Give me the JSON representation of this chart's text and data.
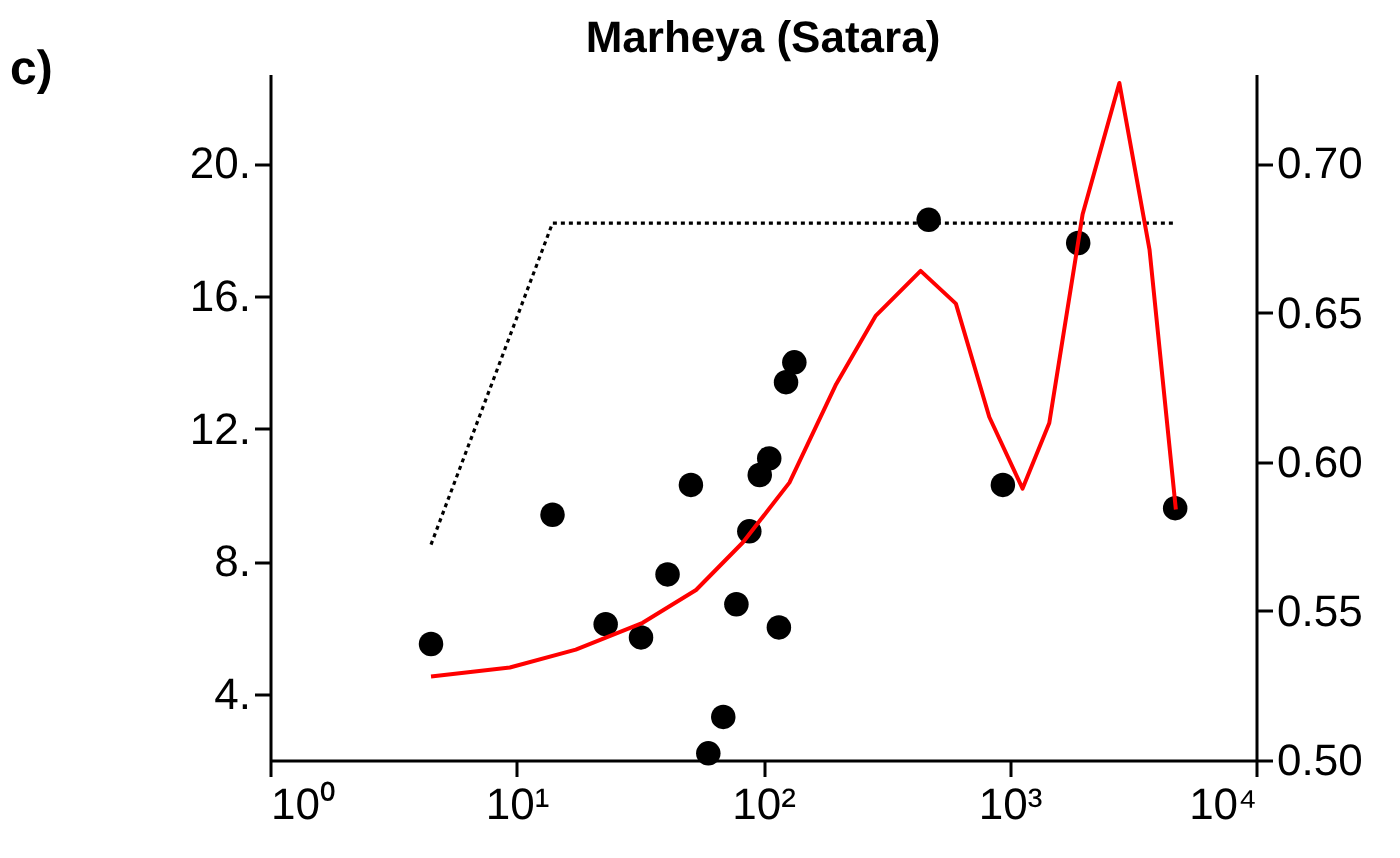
{
  "chart_data": {
    "type": "scatter",
    "title": "Marheya (Satara)",
    "annotations": [
      "c)"
    ],
    "log": "x",
    "grid": false,
    "xlim": [
      1,
      10000
    ],
    "xticks": [
      {
        "value": 1,
        "label": "10⁰"
      },
      {
        "value": 10,
        "label": "10¹"
      },
      {
        "value": 100,
        "label": "10²"
      },
      {
        "value": 1000,
        "label": "10³"
      },
      {
        "value": 10000,
        "label": "10⁴"
      }
    ],
    "ylim": [
      2,
      22.7
    ],
    "yticks": [
      {
        "value": 4,
        "label": "4."
      },
      {
        "value": 8,
        "label": "8."
      },
      {
        "value": 12,
        "label": "12."
      },
      {
        "value": 16,
        "label": "16."
      },
      {
        "value": 20,
        "label": "20."
      }
    ],
    "y2lim": [
      0.5,
      0.73
    ],
    "y2ticks": [
      {
        "value": 0.5,
        "label": "0.50"
      },
      {
        "value": 0.55,
        "label": "0.55"
      },
      {
        "value": 0.6,
        "label": "0.60"
      },
      {
        "value": 0.65,
        "label": "0.65"
      },
      {
        "value": 0.7,
        "label": "0.70"
      }
    ],
    "series": [
      {
        "type": "scatter",
        "marker": "circle",
        "color": "#000000",
        "x": [
          4.5,
          14,
          23,
          32,
          41,
          51,
          78,
          88,
          116,
          69,
          60,
          97,
          106,
          124,
          134,
          470,
          940,
          1900,
          4700
        ],
        "values": [
          5.5,
          9.4,
          6.1,
          5.7,
          7.6,
          10.3,
          6.7,
          8.9,
          6.0,
          3.3,
          2.2,
          10.6,
          11.1,
          13.4,
          14.0,
          18.3,
          10.3,
          17.6,
          9.6
        ]
      },
      {
        "type": "line",
        "line_style": "dotted",
        "color": "#000000",
        "x": [
          4.5,
          14,
          4700
        ],
        "values": [
          8.5,
          18.2,
          18.2
        ]
      },
      {
        "type": "line",
        "line_style": "solid",
        "axis": "y2",
        "color": "#ff0000",
        "x": [
          4.5,
          9.4,
          17.4,
          32.5,
          53.5,
          83,
          128,
          198,
          287,
          436,
          606,
          828,
          1130,
          1450,
          1980,
          2790,
          3700,
          4730
        ],
        "values": [
          0.528,
          0.531,
          0.537,
          0.546,
          0.557,
          0.573,
          0.593,
          0.626,
          0.649,
          0.664,
          0.653,
          0.615,
          0.591,
          0.613,
          0.683,
          0.727,
          0.671,
          0.584
        ]
      }
    ]
  }
}
